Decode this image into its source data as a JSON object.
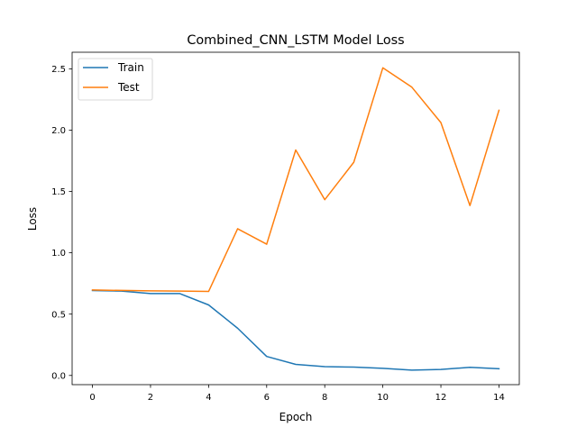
{
  "chart_data": {
    "type": "line",
    "title": "Combined_CNN_LSTM Model Loss",
    "xlabel": "Epoch",
    "ylabel": "Loss",
    "xlim": [
      -0.7,
      14.7
    ],
    "ylim": [
      -0.075,
      2.635
    ],
    "x_ticks": [
      0,
      2,
      4,
      6,
      8,
      10,
      12,
      14
    ],
    "y_ticks": [
      0.0,
      0.5,
      1.0,
      1.5,
      2.0,
      2.5
    ],
    "x_tick_labels": [
      "0",
      "2",
      "4",
      "6",
      "8",
      "10",
      "12",
      "14"
    ],
    "y_tick_labels": [
      "0.0",
      "0.5",
      "1.0",
      "1.5",
      "2.0",
      "2.5"
    ],
    "grid": false,
    "legend_position": "top-left",
    "x": [
      0,
      1,
      2,
      3,
      4,
      5,
      6,
      7,
      8,
      9,
      10,
      11,
      12,
      13,
      14
    ],
    "series": [
      {
        "name": "Train",
        "color": "#1f77b4",
        "values": [
          0.692,
          0.688,
          0.668,
          0.668,
          0.575,
          0.385,
          0.155,
          0.09,
          0.072,
          0.068,
          0.058,
          0.043,
          0.049,
          0.066,
          0.055
        ]
      },
      {
        "name": "Test",
        "color": "#ff7f0e",
        "values": [
          0.697,
          0.693,
          0.69,
          0.688,
          0.685,
          1.196,
          1.07,
          1.838,
          1.433,
          1.738,
          2.508,
          2.35,
          2.061,
          1.385,
          2.162
        ]
      }
    ]
  }
}
